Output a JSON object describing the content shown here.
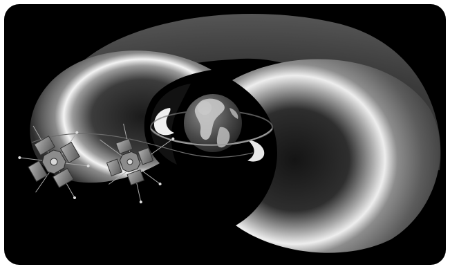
{
  "image": {
    "subject": "earth-radiation-belts-with-two-spacecraft",
    "style": "grayscale-illustration",
    "colors": {
      "background": "#000000",
      "frame": "#ffffff",
      "belt_light": "#f2f2f2",
      "belt_mid": "#9a9a9a",
      "belt_dark": "#3a3a3a",
      "ocean": "#4a4a4a",
      "land": "#c8c8c8",
      "spacecraft": "#8c8c8c"
    }
  }
}
